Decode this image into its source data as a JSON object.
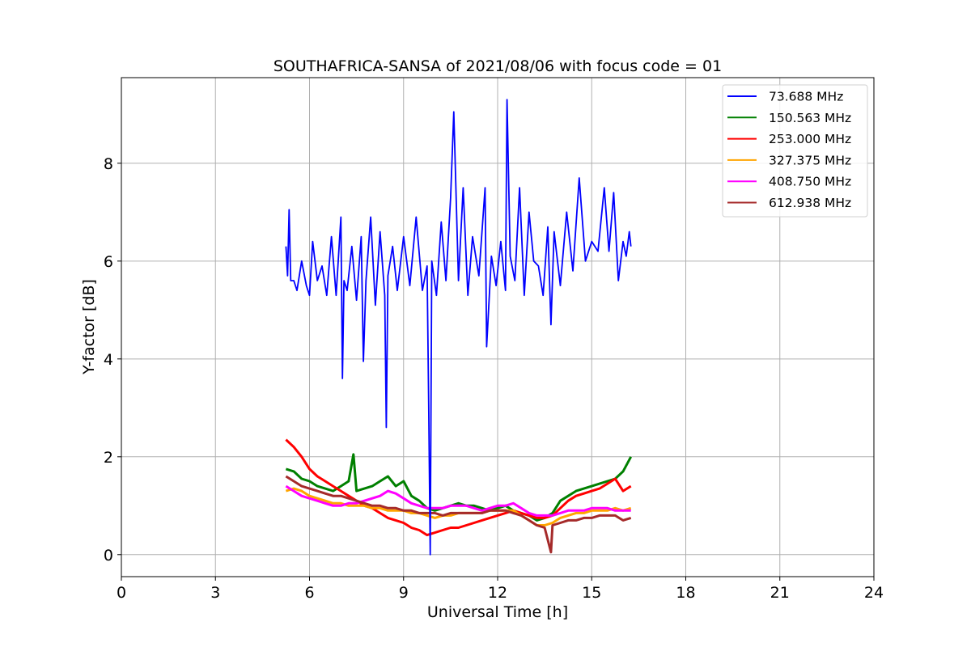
{
  "chart_data": {
    "type": "line",
    "title": "SOUTHAFRICA-SANSA of 2021/08/06 with focus code = 01",
    "xlabel": "Universal Time [h]",
    "ylabel": "Y-factor [dB]",
    "xlim": [
      0,
      24
    ],
    "ylim": [
      -0.45,
      9.75
    ],
    "xticks": [
      0,
      3,
      6,
      9,
      12,
      15,
      18,
      21,
      24
    ],
    "xtick_labels": [
      "0",
      "3",
      "6",
      "9",
      "12",
      "15",
      "18",
      "21",
      "24"
    ],
    "yticks": [
      0,
      2,
      4,
      6,
      8
    ],
    "ytick_labels": [
      "0",
      "2",
      "4",
      "6",
      "8"
    ],
    "grid": true,
    "legend_position": "top-right",
    "series": [
      {
        "name": " 73.688 MHz",
        "color": "#0000ff",
        "x": [
          5.25,
          5.3,
          5.35,
          5.4,
          5.5,
          5.6,
          5.75,
          5.9,
          6.0,
          6.1,
          6.25,
          6.4,
          6.55,
          6.7,
          6.85,
          7.0,
          7.05,
          7.1,
          7.2,
          7.35,
          7.5,
          7.65,
          7.72,
          7.8,
          7.95,
          8.1,
          8.25,
          8.4,
          8.45,
          8.5,
          8.65,
          8.8,
          9.0,
          9.2,
          9.4,
          9.6,
          9.75,
          9.8,
          9.85,
          9.9,
          10.05,
          10.2,
          10.35,
          10.5,
          10.6,
          10.75,
          10.9,
          11.05,
          11.2,
          11.4,
          11.6,
          11.65,
          11.8,
          11.95,
          12.1,
          12.25,
          12.3,
          12.4,
          12.55,
          12.7,
          12.85,
          13.0,
          13.15,
          13.3,
          13.45,
          13.6,
          13.7,
          13.8,
          14.0,
          14.2,
          14.4,
          14.6,
          14.8,
          15.0,
          15.2,
          15.4,
          15.55,
          15.7,
          15.85,
          16.0,
          16.1,
          16.2,
          16.25
        ],
        "y": [
          6.3,
          5.7,
          7.05,
          5.6,
          5.6,
          5.4,
          6.0,
          5.5,
          5.3,
          6.4,
          5.6,
          5.9,
          5.3,
          6.5,
          5.3,
          6.9,
          3.6,
          5.6,
          5.4,
          6.3,
          5.2,
          6.5,
          3.95,
          5.6,
          6.9,
          5.1,
          6.6,
          5.3,
          2.6,
          5.7,
          6.3,
          5.4,
          6.5,
          5.5,
          6.9,
          5.4,
          5.9,
          3.05,
          0.0,
          6.0,
          5.3,
          6.8,
          5.6,
          7.3,
          9.05,
          5.6,
          7.5,
          5.3,
          6.5,
          5.7,
          7.5,
          4.25,
          6.1,
          5.5,
          6.4,
          5.4,
          9.3,
          6.1,
          5.6,
          7.5,
          5.3,
          7.0,
          6.0,
          5.9,
          5.3,
          6.7,
          4.7,
          6.6,
          5.5,
          7.0,
          5.8,
          7.7,
          6.0,
          6.4,
          6.2,
          7.5,
          6.2,
          7.4,
          5.6,
          6.4,
          6.1,
          6.6,
          6.3
        ]
      },
      {
        "name": "150.563 MHz",
        "color": "#008000",
        "x": [
          5.25,
          5.5,
          5.75,
          6.0,
          6.25,
          6.5,
          6.75,
          7.0,
          7.25,
          7.4,
          7.5,
          7.75,
          8.0,
          8.25,
          8.5,
          8.75,
          9.0,
          9.25,
          9.5,
          9.75,
          10.0,
          10.25,
          10.5,
          10.75,
          11.0,
          11.25,
          11.5,
          11.75,
          12.0,
          12.25,
          12.5,
          12.75,
          13.0,
          13.25,
          13.5,
          13.75,
          14.0,
          14.25,
          14.5,
          14.75,
          15.0,
          15.25,
          15.5,
          15.75,
          16.0,
          16.25
        ],
        "y": [
          1.75,
          1.7,
          1.55,
          1.5,
          1.4,
          1.35,
          1.3,
          1.4,
          1.5,
          2.05,
          1.3,
          1.35,
          1.4,
          1.5,
          1.6,
          1.4,
          1.5,
          1.2,
          1.1,
          0.95,
          0.9,
          0.95,
          1.0,
          1.05,
          1.0,
          1.0,
          0.95,
          0.9,
          0.95,
          1.0,
          0.9,
          0.85,
          0.8,
          0.7,
          0.75,
          0.85,
          1.1,
          1.2,
          1.3,
          1.35,
          1.4,
          1.45,
          1.5,
          1.55,
          1.7,
          2.0
        ]
      },
      {
        "name": "253.000 MHz",
        "color": "#ff0000",
        "x": [
          5.25,
          5.5,
          5.75,
          6.0,
          6.25,
          6.5,
          6.75,
          7.0,
          7.25,
          7.5,
          7.75,
          8.0,
          8.25,
          8.5,
          8.75,
          9.0,
          9.25,
          9.5,
          9.75,
          10.0,
          10.25,
          10.5,
          10.75,
          11.0,
          11.25,
          11.5,
          11.75,
          12.0,
          12.25,
          12.5,
          12.75,
          13.0,
          13.25,
          13.5,
          13.75,
          14.0,
          14.25,
          14.5,
          14.75,
          15.0,
          15.25,
          15.5,
          15.75,
          16.0,
          16.25
        ],
        "y": [
          2.35,
          2.2,
          2.0,
          1.75,
          1.6,
          1.5,
          1.4,
          1.3,
          1.2,
          1.1,
          1.0,
          0.95,
          0.85,
          0.75,
          0.7,
          0.65,
          0.55,
          0.5,
          0.4,
          0.45,
          0.5,
          0.55,
          0.55,
          0.6,
          0.65,
          0.7,
          0.75,
          0.8,
          0.85,
          0.9,
          0.85,
          0.8,
          0.75,
          0.75,
          0.8,
          0.95,
          1.1,
          1.2,
          1.25,
          1.3,
          1.35,
          1.45,
          1.55,
          1.3,
          1.4
        ]
      },
      {
        "name": "327.375 MHz",
        "color": "#ffa500",
        "x": [
          5.25,
          5.5,
          5.75,
          6.0,
          6.25,
          6.5,
          6.75,
          7.0,
          7.25,
          7.5,
          7.75,
          8.0,
          8.25,
          8.5,
          8.75,
          9.0,
          9.25,
          9.5,
          9.75,
          10.0,
          10.25,
          10.5,
          10.75,
          11.0,
          11.25,
          11.5,
          11.75,
          12.0,
          12.25,
          12.5,
          12.75,
          13.0,
          13.25,
          13.5,
          13.75,
          14.0,
          14.25,
          14.5,
          14.75,
          15.0,
          15.25,
          15.5,
          15.75,
          16.0,
          16.25
        ],
        "y": [
          1.3,
          1.35,
          1.3,
          1.2,
          1.15,
          1.1,
          1.05,
          1.05,
          1.0,
          1.0,
          1.0,
          0.95,
          0.95,
          0.9,
          0.9,
          0.9,
          0.85,
          0.85,
          0.8,
          0.75,
          0.8,
          0.8,
          0.85,
          0.85,
          0.85,
          0.85,
          0.9,
          0.9,
          0.9,
          0.9,
          0.8,
          0.7,
          0.6,
          0.6,
          0.65,
          0.75,
          0.8,
          0.85,
          0.85,
          0.9,
          0.9,
          0.9,
          0.95,
          0.9,
          0.95
        ]
      },
      {
        "name": "408.750 MHz",
        "color": "#ff00ff",
        "x": [
          5.25,
          5.5,
          5.75,
          6.0,
          6.25,
          6.5,
          6.75,
          7.0,
          7.25,
          7.5,
          7.75,
          8.0,
          8.25,
          8.5,
          8.75,
          9.0,
          9.25,
          9.5,
          9.75,
          10.0,
          10.25,
          10.5,
          10.75,
          11.0,
          11.25,
          11.5,
          11.75,
          12.0,
          12.25,
          12.5,
          12.75,
          13.0,
          13.25,
          13.5,
          13.75,
          14.0,
          14.25,
          14.5,
          14.75,
          15.0,
          15.25,
          15.5,
          15.75,
          16.0,
          16.25
        ],
        "y": [
          1.4,
          1.3,
          1.2,
          1.15,
          1.1,
          1.05,
          1.0,
          1.0,
          1.05,
          1.05,
          1.1,
          1.15,
          1.2,
          1.3,
          1.25,
          1.15,
          1.05,
          1.0,
          0.95,
          0.95,
          0.95,
          1.0,
          1.0,
          1.0,
          0.95,
          0.9,
          0.95,
          1.0,
          1.0,
          1.05,
          0.95,
          0.85,
          0.8,
          0.8,
          0.8,
          0.85,
          0.9,
          0.9,
          0.9,
          0.95,
          0.95,
          0.95,
          0.9,
          0.9,
          0.9
        ]
      },
      {
        "name": "612.938 MHz",
        "color": "#a52a2a",
        "x": [
          5.25,
          5.5,
          5.75,
          6.0,
          6.25,
          6.5,
          6.75,
          7.0,
          7.25,
          7.5,
          7.75,
          8.0,
          8.25,
          8.5,
          8.75,
          9.0,
          9.25,
          9.5,
          9.75,
          10.0,
          10.25,
          10.5,
          10.75,
          11.0,
          11.25,
          11.5,
          11.75,
          12.0,
          12.25,
          12.5,
          12.75,
          13.0,
          13.25,
          13.5,
          13.7,
          13.75,
          14.0,
          14.25,
          14.5,
          14.75,
          15.0,
          15.25,
          15.5,
          15.75,
          16.0,
          16.25
        ],
        "y": [
          1.6,
          1.5,
          1.4,
          1.35,
          1.3,
          1.25,
          1.2,
          1.2,
          1.15,
          1.1,
          1.05,
          1.0,
          1.0,
          0.95,
          0.95,
          0.9,
          0.9,
          0.85,
          0.85,
          0.85,
          0.8,
          0.85,
          0.85,
          0.85,
          0.85,
          0.85,
          0.9,
          0.9,
          0.9,
          0.85,
          0.8,
          0.7,
          0.6,
          0.55,
          0.05,
          0.6,
          0.65,
          0.7,
          0.7,
          0.75,
          0.75,
          0.8,
          0.8,
          0.8,
          0.7,
          0.75
        ]
      }
    ]
  }
}
